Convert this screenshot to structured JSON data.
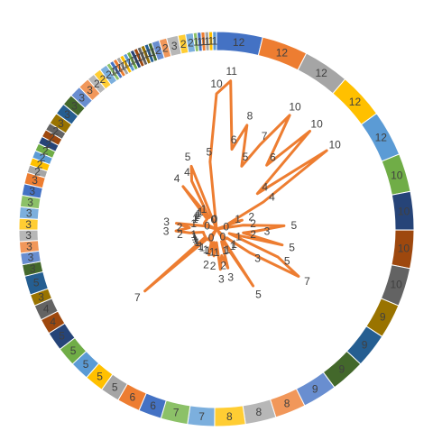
{
  "chart_data": {
    "type": "radar-with-doughnut",
    "title": "",
    "colors": {
      "radar_line": "#ED7D31",
      "ring_palette": [
        "#4472C4",
        "#ED7D31",
        "#A5A5A5",
        "#FFC000",
        "#5B9BD5",
        "#70AD47",
        "#264478",
        "#9E480E",
        "#636363",
        "#997300",
        "#255E91",
        "#43682B",
        "#698ED0",
        "#F1975A",
        "#B7B7B7",
        "#FFCD33",
        "#7CAFDD",
        "#8CC168"
      ]
    },
    "ring": {
      "values": [
        12,
        12,
        12,
        12,
        12,
        10,
        10,
        10,
        10,
        9,
        9,
        9,
        9,
        8,
        8,
        8,
        7,
        7,
        6,
        6,
        5,
        5,
        5,
        5,
        5,
        4,
        4,
        3,
        5,
        3,
        3,
        3,
        3,
        3,
        3,
        3,
        3,
        3,
        2,
        2,
        2,
        2,
        2,
        2,
        2,
        3,
        3,
        3,
        3,
        3,
        2,
        2,
        2,
        1,
        1,
        1,
        1,
        1,
        1,
        1,
        1,
        1,
        1,
        1,
        1,
        1,
        2,
        2,
        3,
        2,
        2,
        1,
        1,
        1,
        1,
        1,
        1
      ],
      "labels": [
        "12",
        "12",
        "12",
        "12",
        "12",
        "10",
        "10",
        "10",
        "10",
        "9",
        "9",
        "9",
        "9",
        "8",
        "8",
        "8",
        "7",
        "7",
        "6",
        "6",
        "5",
        "5",
        "5",
        "5",
        "5",
        "4",
        "4",
        "3",
        "5",
        "3",
        "3",
        "3",
        "3",
        "3",
        "3",
        "3",
        "3",
        "3",
        "2",
        "2",
        "2",
        "2",
        "2",
        "2",
        "2",
        "3",
        "3",
        "3",
        "3",
        "3",
        "2",
        "2",
        "2",
        "1",
        "1",
        "1",
        "1",
        "1",
        "1",
        "1",
        "1",
        "1",
        "1",
        "1",
        "1",
        "1",
        "2",
        "2",
        "3",
        "2",
        "2",
        "1",
        "1",
        "1",
        "1",
        "1",
        "1"
      ]
    },
    "radar": {
      "max": 12,
      "values": [
        10,
        11,
        6,
        8,
        5,
        7,
        10,
        6,
        10,
        4,
        10,
        4,
        1,
        2,
        0,
        2,
        5,
        3,
        2,
        5,
        1,
        5,
        7,
        3,
        1,
        1,
        0,
        5,
        1,
        1,
        3,
        2,
        3,
        1,
        2,
        1,
        2,
        1,
        1,
        0,
        1,
        1,
        7,
        1,
        1,
        1,
        1,
        1,
        2,
        3,
        2,
        3,
        1,
        0,
        1,
        1,
        1,
        1,
        1,
        4,
        1,
        4,
        5,
        0,
        0,
        5
      ],
      "labels": [
        "10",
        "11",
        "6",
        "8",
        "5",
        "7",
        "10",
        "6",
        "10",
        "4",
        "10",
        "4",
        "1",
        "2",
        "0",
        "2",
        "5",
        "3",
        "2",
        "5",
        "1",
        "5",
        "7",
        "3",
        "1",
        "1",
        "0",
        "5",
        "1",
        "1",
        "3",
        "2",
        "3",
        "1",
        "2",
        "1",
        "2",
        "1",
        "1",
        "0",
        "1",
        "1",
        "7",
        "1",
        "1",
        "1",
        "1",
        "1",
        "2",
        "3",
        "2",
        "3",
        "1",
        "0",
        "1",
        "1",
        "1",
        "1",
        "1",
        "4",
        "1",
        "4",
        "5",
        "0",
        "0",
        "5"
      ]
    }
  }
}
